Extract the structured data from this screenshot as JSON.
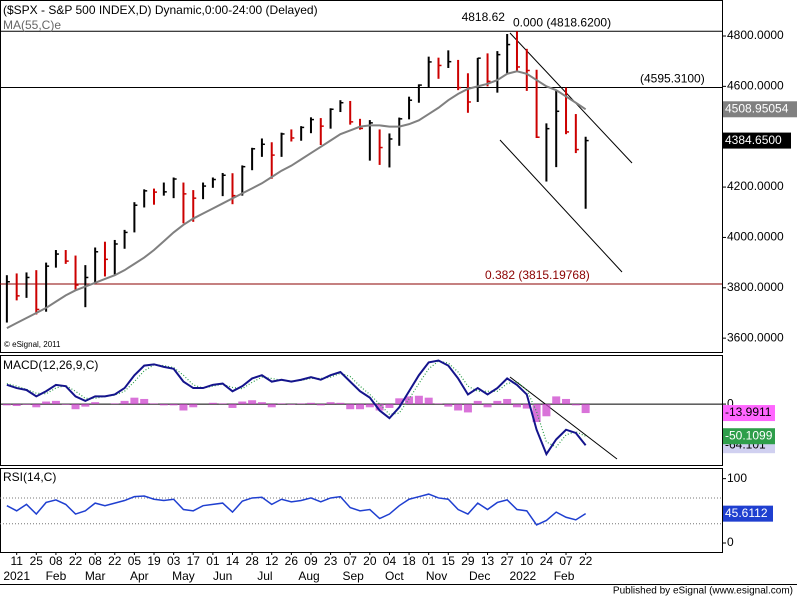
{
  "chart_data": [
    {
      "type": "ohlc",
      "title": "($SPX - S&P 500 INDEX,D) Dynamic,0:00-24:00 (Delayed)",
      "xlim": [
        -1.7,
        71.9
      ],
      "ylim": [
        3545,
        4939
      ],
      "yticks": [
        {
          "value": 4800,
          "label": "4800.0000"
        },
        {
          "value": 4600,
          "label": "4600.0000"
        },
        {
          "value": 4200,
          "label": "4200.0000"
        },
        {
          "value": 4000,
          "label": "4000.0000"
        },
        {
          "value": 3800,
          "label": "3800.0000"
        },
        {
          "value": 3600,
          "label": "3600.0000"
        }
      ],
      "x": [
        -1,
        0,
        1,
        2,
        3,
        4,
        5,
        6,
        7,
        8,
        9,
        10,
        11,
        12,
        13,
        14,
        15,
        16,
        17,
        18,
        19,
        20,
        21,
        22,
        23,
        24,
        25,
        26,
        27,
        28,
        29,
        30,
        31,
        32,
        33,
        34,
        35,
        36,
        37,
        38,
        39,
        40,
        41,
        42,
        43,
        44,
        45,
        46,
        47,
        48,
        49,
        50,
        51,
        52,
        53,
        54,
        55,
        56,
        57,
        58
      ],
      "high": [
        3850,
        3857,
        3861,
        3870,
        3900,
        3950,
        3950,
        3928,
        3890,
        3960,
        3983,
        3990,
        4030,
        4140,
        4191,
        4194,
        4218,
        4238,
        4218,
        4188,
        4218,
        4238,
        4256,
        4255,
        4286,
        4356,
        4393,
        4378,
        4416,
        4429,
        4442,
        4477,
        4474,
        4513,
        4545,
        4542,
        4471,
        4466,
        4429,
        4413,
        4476,
        4559,
        4608,
        4718,
        4714,
        4743,
        4705,
        4652,
        4713,
        4731,
        4740,
        4808,
        4818.62,
        4749,
        4666,
        4453,
        4582,
        4595,
        4490,
        4400
      ],
      "low": [
        3662,
        3750,
        3760,
        3694,
        3705,
        3880,
        3895,
        3789,
        3723,
        3818,
        3845,
        3853,
        3955,
        4020,
        4119,
        4130,
        4166,
        4156,
        4056,
        4062,
        4152,
        4197,
        4164,
        4132,
        4166,
        4267,
        4320,
        4233,
        4320,
        4381,
        4384,
        4414,
        4367,
        4432,
        4498,
        4448,
        4428,
        4305,
        4288,
        4278,
        4364,
        4469,
        4535,
        4595,
        4630,
        4673,
        4585,
        4495,
        4538,
        4600,
        4575,
        4651,
        4662,
        4582,
        4395,
        4222,
        4279,
        4410,
        4335,
        4114
      ],
      "close": [
        3824,
        3768,
        3841,
        3714,
        3886,
        3934,
        3906,
        3811,
        3841,
        3943,
        3913,
        3974,
        4020,
        4128,
        4185,
        4180,
        4181,
        4232,
        4173,
        4156,
        4204,
        4230,
        4247,
        4166,
        4281,
        4352,
        4370,
        4327,
        4411,
        4395,
        4437,
        4468,
        4442,
        4509,
        4535,
        4459,
        4433,
        4455,
        4357,
        4391,
        4471,
        4545,
        4605,
        4697,
        4683,
        4698,
        4595,
        4538,
        4712,
        4620,
        4726,
        4766,
        4677,
        4663,
        4398,
        4432,
        4501,
        4419,
        4349,
        4384.65
      ],
      "up_color": "#000000",
      "down_color": "#cc0000",
      "last_price": {
        "value": 4384.65,
        "label": "4384.6500"
      },
      "series": [
        {
          "name": "MA(55,C)e",
          "color": "#808080",
          "values": [
            3640,
            3660,
            3680,
            3700,
            3720,
            3745,
            3770,
            3790,
            3805,
            3820,
            3835,
            3850,
            3870,
            3895,
            3920,
            3950,
            3985,
            4020,
            4050,
            4075,
            4095,
            4115,
            4135,
            4155,
            4175,
            4195,
            4215,
            4240,
            4265,
            4285,
            4310,
            4335,
            4360,
            4385,
            4410,
            4425,
            4440,
            4445,
            4445,
            4440,
            4440,
            4450,
            4465,
            4490,
            4515,
            4545,
            4570,
            4590,
            4600,
            4610,
            4625,
            4650,
            4660,
            4650,
            4625,
            4600,
            4585,
            4560,
            4535,
            4508.95054
          ]
        }
      ],
      "levels": [
        {
          "value": 4818.62,
          "label": "0.000 (4818.6200)",
          "color": "#000000"
        },
        {
          "value": 4595.31,
          "label": "(4595.3100)",
          "color": "#000000"
        },
        {
          "value": 3815.19768,
          "label": "0.382 (3815.19768)",
          "color": "#8b0000"
        }
      ],
      "note": "© eSignal, 2011"
    },
    {
      "type": "macd",
      "title": "MACD(12,26,9,C)",
      "ylim": [
        -95,
        75
      ],
      "yticks": [
        0
      ],
      "macd": [
        30,
        25,
        22,
        12,
        20,
        30,
        28,
        12,
        5,
        12,
        12,
        15,
        25,
        45,
        60,
        62,
        58,
        55,
        35,
        25,
        25,
        30,
        32,
        20,
        28,
        40,
        45,
        35,
        38,
        35,
        38,
        42,
        38,
        45,
        50,
        35,
        20,
        10,
        -10,
        -22,
        -5,
        20,
        45,
        65,
        68,
        60,
        40,
        15,
        25,
        15,
        25,
        40,
        30,
        15,
        -40,
        -78,
        -55,
        -40,
        -45,
        -64.101
      ],
      "signal": [
        32,
        28,
        23,
        17,
        16,
        25,
        29,
        20,
        9,
        9,
        12,
        14,
        20,
        35,
        52,
        61,
        60,
        57,
        45,
        30,
        25,
        28,
        31,
        26,
        24,
        34,
        42,
        40,
        37,
        36,
        37,
        40,
        40,
        42,
        48,
        43,
        28,
        15,
        0,
        -16,
        -14,
        8,
        32,
        55,
        67,
        64,
        50,
        28,
        20,
        20,
        20,
        32,
        35,
        22,
        -12,
        -59,
        -67,
        -48,
        -43,
        -50.1099
      ],
      "histogram": [
        -2,
        -3,
        -1,
        -5,
        4,
        5,
        -1,
        -8,
        -4,
        3,
        0,
        1,
        5,
        10,
        8,
        1,
        -2,
        -2,
        -10,
        -5,
        0,
        2,
        1,
        -6,
        4,
        6,
        3,
        -5,
        1,
        -1,
        1,
        2,
        -2,
        3,
        2,
        -8,
        -8,
        -5,
        -10,
        -6,
        9,
        12,
        13,
        10,
        1,
        -4,
        -10,
        -13,
        5,
        -5,
        5,
        8,
        -5,
        -7,
        -28,
        -19,
        12,
        8,
        -2,
        -13.9911
      ],
      "macd_color": "#14148c",
      "signal_color": "#2e9e4a",
      "histogram_color": "#cc44cc"
    },
    {
      "type": "line",
      "title": "RSI(14,C)",
      "ylim": [
        -14,
        115
      ],
      "yticks": [
        0,
        100
      ],
      "guide_levels": [
        30,
        70
      ],
      "color": "#1f3fd0",
      "values": [
        58,
        50,
        60,
        45,
        63,
        67,
        60,
        45,
        50,
        62,
        58,
        62,
        66,
        72,
        73,
        68,
        66,
        68,
        52,
        50,
        58,
        60,
        62,
        48,
        65,
        70,
        71,
        60,
        68,
        64,
        66,
        70,
        64,
        70,
        72,
        55,
        50,
        52,
        38,
        45,
        58,
        68,
        72,
        76,
        70,
        68,
        52,
        45,
        62,
        52,
        63,
        67,
        52,
        50,
        28,
        35,
        48,
        40,
        36,
        45.6112
      ],
      "xticks": [
        {
          "value": 0,
          "label": "11"
        },
        {
          "value": 2,
          "label": "25"
        },
        {
          "value": 4,
          "label": "08"
        },
        {
          "value": 6,
          "label": "22"
        },
        {
          "value": 8,
          "label": "08"
        },
        {
          "value": 10,
          "label": "22"
        },
        {
          "value": 12,
          "label": "05"
        },
        {
          "value": 14,
          "label": "19"
        },
        {
          "value": 16,
          "label": "03"
        },
        {
          "value": 18,
          "label": "17"
        },
        {
          "value": 20,
          "label": "01"
        },
        {
          "value": 22,
          "label": "14"
        },
        {
          "value": 24,
          "label": "28"
        },
        {
          "value": 26,
          "label": "12"
        },
        {
          "value": 28,
          "label": "26"
        },
        {
          "value": 30,
          "label": "09"
        },
        {
          "value": 32,
          "label": "23"
        },
        {
          "value": 34,
          "label": "07"
        },
        {
          "value": 36,
          "label": "20"
        },
        {
          "value": 38,
          "label": "04"
        },
        {
          "value": 40,
          "label": "18"
        },
        {
          "value": 42,
          "label": "01"
        },
        {
          "value": 44,
          "label": "15"
        },
        {
          "value": 46,
          "label": "29"
        },
        {
          "value": 48,
          "label": "13"
        },
        {
          "value": 50,
          "label": "27"
        },
        {
          "value": 52,
          "label": "10"
        },
        {
          "value": 54,
          "label": "24"
        },
        {
          "value": 56,
          "label": "07"
        },
        {
          "value": 58,
          "label": "22"
        }
      ],
      "month_labels": [
        {
          "value": 0,
          "label": "2021"
        },
        {
          "value": 4,
          "label": "Feb"
        },
        {
          "value": 8,
          "label": "Mar"
        },
        {
          "value": 12.5,
          "label": "Apr"
        },
        {
          "value": 17,
          "label": "May"
        },
        {
          "value": 21,
          "label": "Jun"
        },
        {
          "value": 25.3,
          "label": "Jul"
        },
        {
          "value": 29.8,
          "label": "Aug"
        },
        {
          "value": 34.3,
          "label": "Sep"
        },
        {
          "value": 38.5,
          "label": "Oct"
        },
        {
          "value": 42.8,
          "label": "Nov"
        },
        {
          "value": 47.2,
          "label": "Dec"
        },
        {
          "value": 51.6,
          "label": "2022"
        },
        {
          "value": 55.8,
          "label": "Feb"
        }
      ],
      "credit": "Published by eSignal (www.esignal.com)"
    }
  ]
}
